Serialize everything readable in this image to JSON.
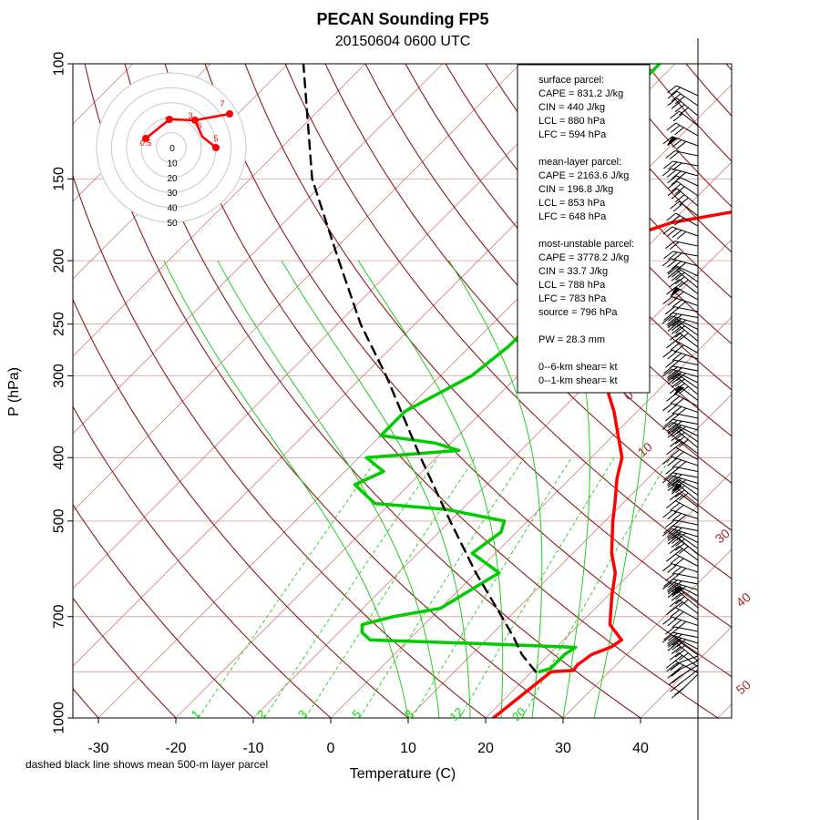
{
  "chart_data": {
    "type": "line",
    "title": "PECAN Sounding FP5",
    "subtitle": "20150604 0600 UTC",
    "xlabel": "Temperature (C)",
    "ylabel": "P (hPa)",
    "x_ticks": [
      "-30",
      "-20",
      "-10",
      "0",
      "10",
      "20",
      "30",
      "40"
    ],
    "y_ticks": [
      "100",
      "150",
      "200",
      "250",
      "300",
      "400",
      "500",
      "700",
      "1000"
    ],
    "y_tick_values": [
      100,
      150,
      200,
      250,
      300,
      400,
      500,
      700,
      1000
    ],
    "note": "dashed black line shows mean 500-m layer parcel",
    "dry_adiabat_labels": [
      "0",
      "10",
      "30",
      "40",
      "50"
    ],
    "mixing_ratio_labels": [
      "1",
      "2",
      "3",
      "5",
      "8",
      "12",
      "20"
    ],
    "info_lines": [
      "surface parcel:",
      "CAPE = 831.2 J/kg",
      "CIN = 440 J/kg",
      "LCL = 880 hPa",
      "LFC = 594 hPa",
      "",
      "mean-layer parcel:",
      "CAPE = 2163.6 J/kg",
      "CIN = 196.8 J/kg",
      "LCL = 853 hPa",
      "LFC = 648 hPa",
      "",
      "most-unstable parcel:",
      "CAPE = 3778.2 J/kg",
      "CIN = 33.7 J/kg",
      "LCL = 788 hPa",
      "LFC = 783 hPa",
      "source = 796 hPa",
      "",
      "PW =  28.3 mm",
      "",
      "0--6-km shear=  kt",
      "0--1-km shear=  kt"
    ],
    "hodograph": {
      "ring_labels": [
        "0",
        "10",
        "20",
        "30",
        "40",
        "50"
      ],
      "point_labels": [
        "0.5",
        "1",
        "3",
        "6",
        "7",
        "5"
      ]
    },
    "series": [
      {
        "name": "temperature",
        "color": "#ff0000",
        "points": [
          [
            1000,
            21
          ],
          [
            850,
            22.5
          ],
          [
            846,
            25.2
          ],
          [
            830,
            25
          ],
          [
            800,
            25.5
          ],
          [
            780,
            27
          ],
          [
            760,
            27.5
          ],
          [
            720,
            24
          ],
          [
            650,
            20.5
          ],
          [
            600,
            18
          ],
          [
            560,
            15
          ],
          [
            500,
            11
          ],
          [
            470,
            9
          ],
          [
            430,
            6
          ],
          [
            400,
            4
          ],
          [
            340,
            -3
          ],
          [
            300,
            -9
          ],
          [
            250,
            -15
          ],
          [
            220,
            -19
          ],
          [
            200,
            -24
          ],
          [
            185,
            -24
          ],
          [
            175,
            -20
          ],
          [
            165,
            -10
          ],
          [
            155,
            -11
          ],
          [
            150,
            -12
          ],
          [
            140,
            -13
          ],
          [
            130,
            -14
          ],
          [
            120,
            -15
          ],
          [
            110,
            -16
          ],
          [
            100,
            -17
          ]
        ]
      },
      {
        "name": "dewpoint",
        "color": "#00cc00",
        "points": [
          [
            850,
            21
          ],
          [
            840,
            22
          ],
          [
            800,
            22
          ],
          [
            780,
            22.5
          ],
          [
            770,
            10
          ],
          [
            760,
            -5
          ],
          [
            740,
            -7
          ],
          [
            720,
            -8
          ],
          [
            700,
            -5
          ],
          [
            680,
            0
          ],
          [
            600,
            3
          ],
          [
            560,
            -3
          ],
          [
            520,
            -2
          ],
          [
            500,
            -3
          ],
          [
            480,
            -12
          ],
          [
            470,
            -22
          ],
          [
            440,
            -27
          ],
          [
            420,
            -25
          ],
          [
            400,
            -29
          ],
          [
            390,
            -18
          ],
          [
            380,
            -22
          ],
          [
            370,
            -30
          ],
          [
            340,
            -30
          ],
          [
            300,
            -26
          ],
          [
            270,
            -25
          ],
          [
            250,
            -25
          ],
          [
            230,
            -28
          ],
          [
            210,
            -33
          ],
          [
            195,
            -35
          ],
          [
            180,
            -35
          ],
          [
            170,
            -37
          ],
          [
            160,
            -38
          ],
          [
            150,
            -40
          ],
          [
            130,
            -40
          ],
          [
            110,
            -42
          ],
          [
            100,
            -42
          ]
        ]
      },
      {
        "name": "mean 500-m layer parcel",
        "color": "#000000",
        "points": [
          [
            850,
            20.5
          ],
          [
            800,
            16.5
          ],
          [
            750,
            13
          ],
          [
            700,
            9
          ],
          [
            600,
            0
          ],
          [
            500,
            -10
          ],
          [
            400,
            -22
          ],
          [
            300,
            -37
          ],
          [
            250,
            -47
          ],
          [
            200,
            -58
          ],
          [
            150,
            -72
          ],
          [
            100,
            -88
          ]
        ]
      }
    ]
  }
}
